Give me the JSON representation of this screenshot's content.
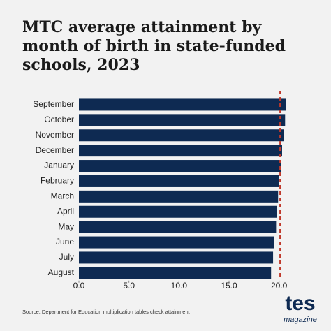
{
  "chart_data": {
    "type": "barh",
    "title_lines": [
      "MTC average attainment by",
      "month of birth in state-funded",
      "schools, 2023"
    ],
    "categories": [
      "September",
      "October",
      "November",
      "December",
      "January",
      "February",
      "March",
      "April",
      "May",
      "June",
      "July",
      "August"
    ],
    "values": [
      20.7,
      20.6,
      20.5,
      20.3,
      20.2,
      20.0,
      19.9,
      19.8,
      19.7,
      19.5,
      19.4,
      19.2
    ],
    "color": "#0e2a52",
    "reference_value": 20.1,
    "reference_color": "#c0392b",
    "xlim": [
      0,
      21
    ],
    "xticks": [
      {
        "value": 0,
        "label": "0.0"
      },
      {
        "value": 5,
        "label": "5.0"
      },
      {
        "value": 10,
        "label": "10.0"
      },
      {
        "value": 15,
        "label": "15.0"
      },
      {
        "value": 20,
        "label": "20.0"
      }
    ],
    "source": "Source: Department for Education multiplication tables check attainment"
  },
  "brand": {
    "name": "tes",
    "subtitle": "magazine"
  }
}
